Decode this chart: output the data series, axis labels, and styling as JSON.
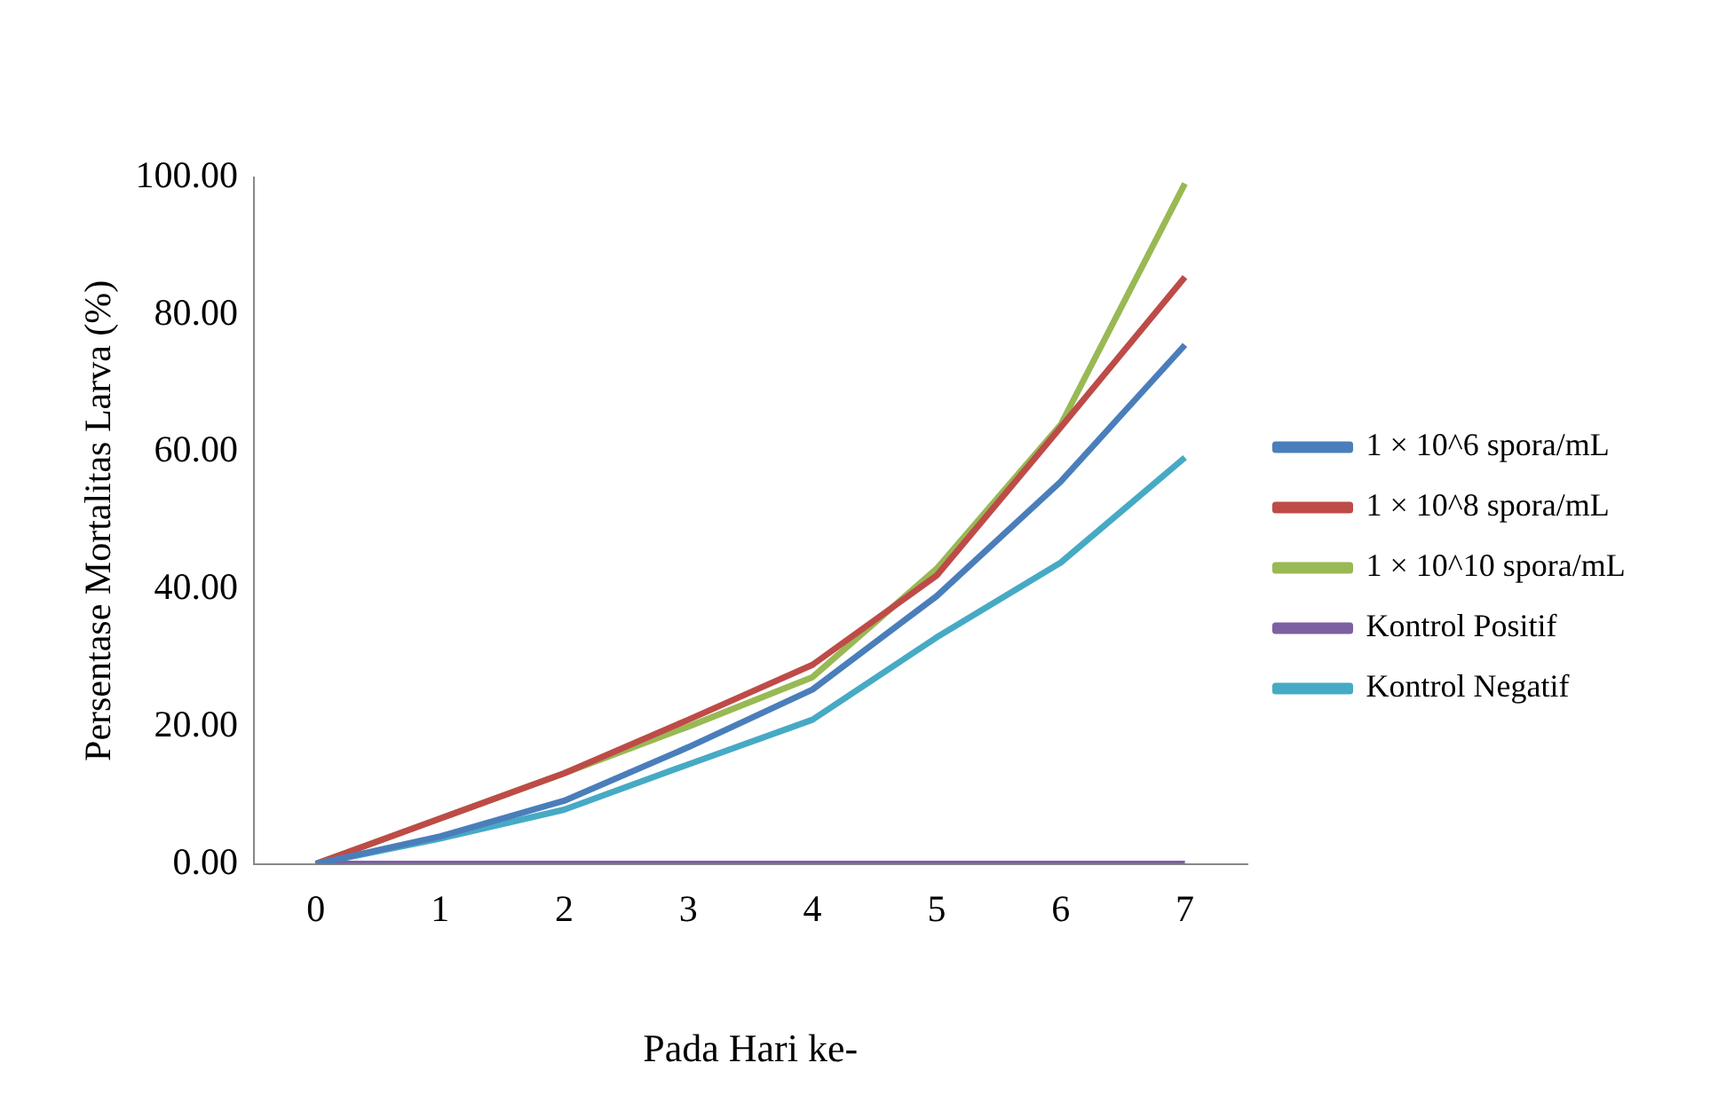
{
  "chart_data": {
    "type": "line",
    "xlabel": "Pada Hari ke-",
    "ylabel": "Persentase Mortalitas Larva (%)",
    "categories": [
      "0",
      "1",
      "2",
      "3",
      "4",
      "5",
      "6",
      "7"
    ],
    "series": [
      {
        "name": "1 × 10^6 spora/mL",
        "color": "#4a7ebb",
        "values": [
          0,
          4,
          9.2,
          17,
          25.4,
          39,
          55.7,
          75.6
        ]
      },
      {
        "name": "1 × 10^8 spora/mL",
        "color": "#be4b48",
        "values": [
          0,
          6.6,
          13.2,
          21,
          29,
          42,
          63.6,
          85.5
        ]
      },
      {
        "name": "1 × 10^10 spora/mL",
        "color": "#98b954",
        "values": [
          0,
          6.6,
          13.2,
          20,
          27.2,
          43,
          64,
          99.1
        ]
      },
      {
        "name": "Kontrol Positif",
        "color": "#7d60a0",
        "values": [
          0,
          0,
          0,
          0,
          0,
          0,
          0,
          0
        ]
      },
      {
        "name": "Kontrol Negatif",
        "color": "#46aac5",
        "values": [
          0,
          3.7,
          7.9,
          14.5,
          21,
          33,
          43.9,
          59.2
        ]
      }
    ],
    "ylim": [
      0,
      100
    ],
    "yticks": [
      {
        "value": 0,
        "label": "0.00"
      },
      {
        "value": 20,
        "label": "20.00"
      },
      {
        "value": 40,
        "label": "40.00"
      },
      {
        "value": 60,
        "label": "60.00"
      },
      {
        "value": 80,
        "label": "80.00"
      },
      {
        "value": 100,
        "label": "100.00"
      }
    ],
    "grid": false,
    "legend": "right",
    "marker": "none",
    "line_style": "solid"
  }
}
